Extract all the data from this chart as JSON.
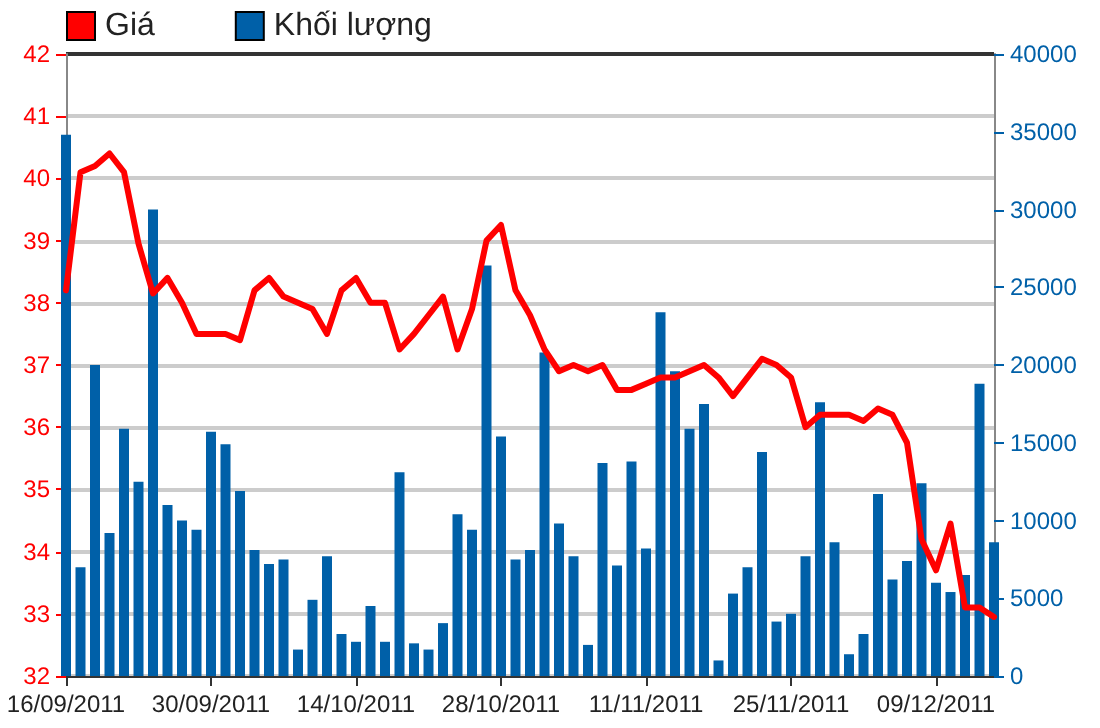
{
  "chart_data": {
    "type": "bar",
    "categories": [
      "16/09/2011",
      null,
      null,
      null,
      null,
      null,
      null,
      null,
      null,
      null,
      "30/09/2011",
      null,
      null,
      null,
      null,
      null,
      null,
      null,
      null,
      null,
      "14/10/2011",
      null,
      null,
      null,
      null,
      null,
      null,
      null,
      null,
      null,
      "28/10/2011",
      null,
      null,
      null,
      null,
      null,
      null,
      null,
      null,
      null,
      "11/11/2011",
      null,
      null,
      null,
      null,
      null,
      null,
      null,
      null,
      null,
      "25/11/2011",
      null,
      null,
      null,
      null,
      null,
      null,
      null,
      null,
      null,
      "09/12/2011",
      null,
      null,
      null,
      null
    ],
    "series": [
      {
        "name": "Giá",
        "type": "line",
        "color": "#ff0000",
        "values": [
          38.2,
          40.1,
          40.2,
          40.4,
          40.1,
          38.95,
          38.15,
          38.4,
          38.0,
          37.5,
          37.5,
          37.5,
          37.4,
          38.2,
          38.4,
          38.1,
          38.0,
          37.9,
          37.5,
          38.2,
          38.4,
          38.0,
          38.0,
          37.25,
          37.5,
          37.8,
          38.1,
          37.25,
          37.9,
          39.0,
          39.25,
          38.2,
          37.8,
          37.25,
          36.9,
          37.0,
          36.9,
          37.0,
          36.6,
          36.6,
          36.7,
          36.8,
          36.8,
          36.9,
          37.0,
          36.8,
          36.5,
          36.8,
          37.1,
          37.0,
          36.8,
          36.0,
          36.2,
          36.2,
          36.2,
          36.1,
          36.3,
          36.2,
          35.75,
          34.2,
          33.7,
          34.45,
          33.1,
          33.1,
          32.95
        ]
      },
      {
        "name": "Khối lượng",
        "axis": "y2",
        "color": "#0060a8",
        "values": [
          34800,
          7000,
          20000,
          9200,
          15900,
          12500,
          30000,
          11000,
          10000,
          9400,
          15700,
          14900,
          11900,
          8100,
          7200,
          7500,
          1700,
          4900,
          7700,
          2700,
          2200,
          4500,
          2200,
          13100,
          2100,
          1700,
          3400,
          10400,
          9400,
          26400,
          15400,
          7500,
          8100,
          20800,
          9800,
          7700,
          2000,
          13700,
          7100,
          13800,
          8200,
          23400,
          19600,
          15900,
          17500,
          1000,
          5300,
          7000,
          14400,
          3500,
          4000,
          7700,
          17600,
          8600,
          1400,
          2700,
          11700,
          6200,
          7400,
          12400,
          6000,
          5400,
          6500,
          18800,
          8600
        ]
      }
    ],
    "ylim": [
      32,
      42
    ],
    "yticks": [
      32,
      33,
      34,
      35,
      36,
      37,
      38,
      39,
      40,
      41,
      42
    ],
    "y2lim": [
      0,
      40000
    ],
    "y2ticks": [
      0,
      5000,
      10000,
      15000,
      20000,
      25000,
      30000,
      35000,
      40000
    ],
    "grid": "y",
    "legend": "top left",
    "marker": "none"
  }
}
